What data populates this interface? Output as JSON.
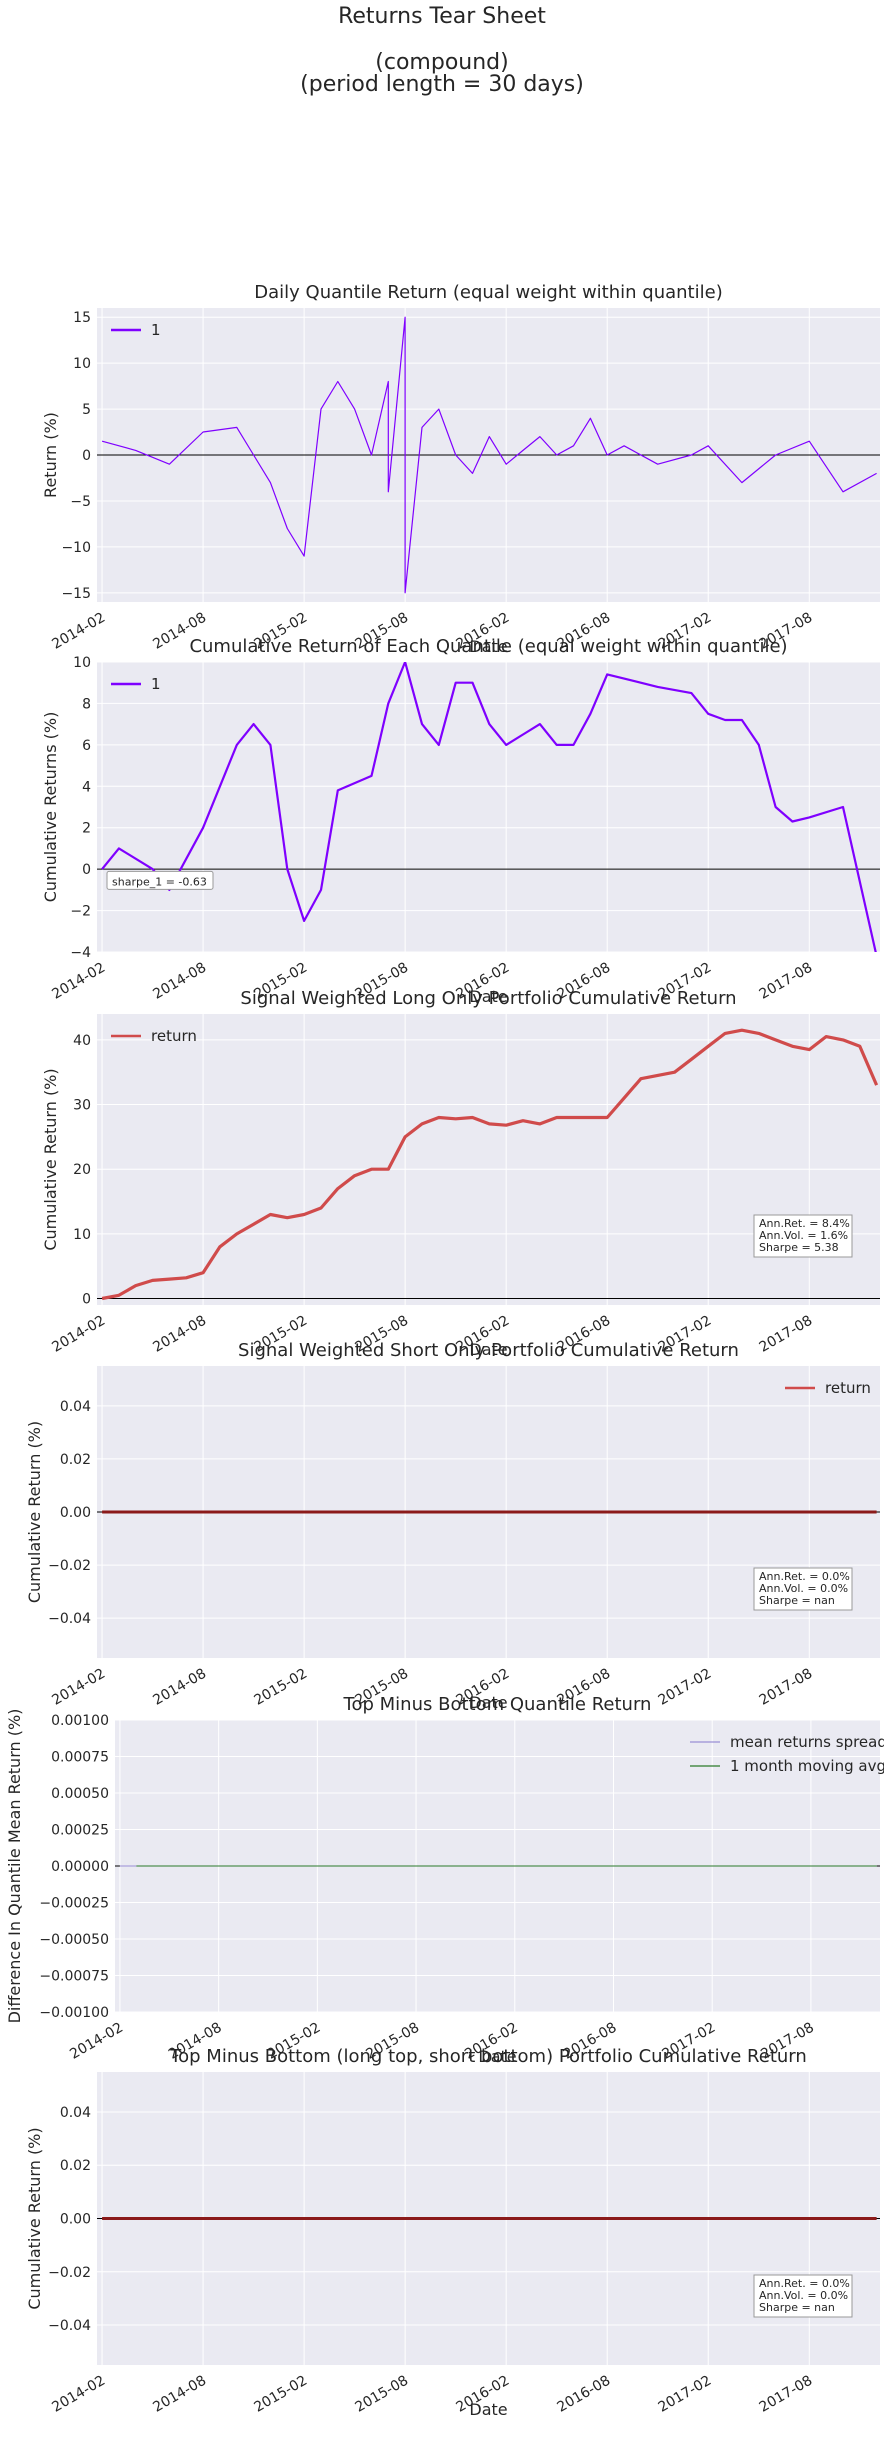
{
  "page": {
    "title": "Returns Tear Sheet",
    "subtitle_1": "(compound)",
    "subtitle_2": "(period length = 30 days)"
  },
  "colors": {
    "panel_bg": "#eaeaf2",
    "grid": "#ffffff",
    "quantile_1": "#7f00ff",
    "return_line": "#d04b4b",
    "zero_line": "#000000",
    "spread_line": "#9b8fd6",
    "moving_avg": "#2a7a2a"
  },
  "chart_data": [
    {
      "type": "line",
      "title": "Daily Quantile Return (equal weight within quantile)",
      "xlabel": "Date",
      "ylabel": "Return (%)",
      "xticks": [
        "2014-02",
        "2014-08",
        "2015-02",
        "2015-08",
        "2016-02",
        "2016-08",
        "2017-02",
        "2017-08"
      ],
      "yticks": [
        -15,
        -10,
        -5,
        0,
        5,
        10,
        15
      ],
      "ylim": [
        -16,
        16
      ],
      "grid": true,
      "legend_position": "top-left",
      "series": [
        {
          "name": "1",
          "x": [
            "2014-02",
            "2014-04",
            "2014-06",
            "2014-08",
            "2014-10",
            "2014-11",
            "2014-12",
            "2015-01",
            "2015-02",
            "2015-03",
            "2015-04",
            "2015-05",
            "2015-06",
            "2015-07",
            "2015-07",
            "2015-08",
            "2015-08",
            "2015-09",
            "2015-10",
            "2015-11",
            "2015-12",
            "2016-01",
            "2016-02",
            "2016-03",
            "2016-04",
            "2016-05",
            "2016-06",
            "2016-07",
            "2016-08",
            "2016-09",
            "2016-11",
            "2017-01",
            "2017-02",
            "2017-04",
            "2017-06",
            "2017-08",
            "2017-10",
            "2017-12"
          ],
          "values": [
            1.5,
            0.5,
            -1,
            2.5,
            3,
            0,
            -3,
            -8,
            -11,
            5,
            8,
            5,
            0,
            8,
            -4,
            15,
            -15,
            3,
            5,
            0,
            -2,
            2,
            -1,
            0.5,
            2,
            0,
            1,
            4,
            0,
            1,
            -1,
            0,
            1,
            -3,
            0,
            1.5,
            -4,
            -2
          ]
        }
      ]
    },
    {
      "type": "line",
      "title": "Cumulative Return of Each Quantile (equal weight within quantile)",
      "xlabel": "Date",
      "ylabel": "Cumulative Returns (%)",
      "xticks": [
        "2014-02",
        "2014-08",
        "2015-02",
        "2015-08",
        "2016-02",
        "2016-08",
        "2017-02",
        "2017-08"
      ],
      "yticks": [
        -4,
        -2,
        0,
        2,
        4,
        6,
        8,
        10
      ],
      "ylim": [
        -4,
        10
      ],
      "grid": true,
      "legend_position": "top-left",
      "annotation": "sharpe_1 = -0.63",
      "series": [
        {
          "name": "1",
          "x": [
            "2014-02",
            "2014-03",
            "2014-05",
            "2014-06",
            "2014-08",
            "2014-10",
            "2014-11",
            "2014-12",
            "2015-01",
            "2015-02",
            "2015-03",
            "2015-04",
            "2015-06",
            "2015-07",
            "2015-08",
            "2015-09",
            "2015-10",
            "2015-11",
            "2015-12",
            "2016-01",
            "2016-02",
            "2016-03",
            "2016-04",
            "2016-05",
            "2016-06",
            "2016-07",
            "2016-08",
            "2016-09",
            "2016-11",
            "2017-01",
            "2017-02",
            "2017-03",
            "2017-04",
            "2017-05",
            "2017-06",
            "2017-07",
            "2017-08",
            "2017-10",
            "2017-12"
          ],
          "values": [
            0,
            1,
            0,
            -1,
            2,
            6,
            7,
            6,
            0,
            -2.5,
            -1,
            3.8,
            4.5,
            8,
            10,
            7,
            6,
            9,
            9,
            7,
            6,
            6.5,
            7,
            6,
            6,
            7.5,
            9.4,
            9.2,
            8.8,
            8.5,
            7.5,
            7.2,
            7.2,
            6,
            3,
            2.3,
            2.5,
            3,
            -4.2
          ]
        }
      ]
    },
    {
      "type": "line",
      "title": "Signal Weighted Long Only Portfolio Cumulative Return",
      "xlabel": "Date",
      "ylabel": "Cumulative Return (%)",
      "xticks": [
        "2014-02",
        "2014-08",
        "2015-02",
        "2015-08",
        "2016-02",
        "2016-08",
        "2017-02",
        "2017-08"
      ],
      "yticks": [
        0,
        10,
        20,
        30,
        40
      ],
      "ylim": [
        -1,
        44
      ],
      "grid": true,
      "legend_position": "top-left",
      "stats": [
        "Ann.Ret. = 8.4%",
        "Ann.Vol. = 1.6%",
        "Sharpe = 5.38"
      ],
      "series": [
        {
          "name": "return",
          "x": [
            "2014-02",
            "2014-03",
            "2014-04",
            "2014-05",
            "2014-06",
            "2014-07",
            "2014-08",
            "2014-09",
            "2014-10",
            "2014-11",
            "2014-12",
            "2015-01",
            "2015-02",
            "2015-03",
            "2015-04",
            "2015-05",
            "2015-06",
            "2015-07",
            "2015-08",
            "2015-09",
            "2015-10",
            "2015-11",
            "2015-12",
            "2016-01",
            "2016-02",
            "2016-03",
            "2016-04",
            "2016-05",
            "2016-06",
            "2016-07",
            "2016-08",
            "2016-09",
            "2016-10",
            "2016-11",
            "2016-12",
            "2017-01",
            "2017-02",
            "2017-03",
            "2017-04",
            "2017-05",
            "2017-06",
            "2017-07",
            "2017-08",
            "2017-09",
            "2017-10",
            "2017-11",
            "2017-12"
          ],
          "values": [
            0,
            0.5,
            2,
            2.8,
            3,
            3.2,
            4,
            8,
            10,
            11.5,
            13,
            12.5,
            13,
            14,
            17,
            19,
            20,
            20,
            25,
            27,
            28,
            27.8,
            28,
            27,
            26.8,
            27.5,
            27,
            28,
            28,
            28,
            28,
            31,
            34,
            34.5,
            35,
            37,
            39,
            41,
            41.5,
            41,
            40,
            39,
            38.5,
            40.5,
            40,
            39,
            33
          ]
        }
      ]
    },
    {
      "type": "line",
      "title": "Signal Weighted Short Only Portfolio Cumulative Return",
      "xlabel": "Date",
      "ylabel": "Cumulative Return (%)",
      "xticks": [
        "2014-02",
        "2014-08",
        "2015-02",
        "2015-08",
        "2016-02",
        "2016-08",
        "2017-02",
        "2017-08"
      ],
      "yticks": [
        -0.04,
        -0.02,
        0.0,
        0.02,
        0.04
      ],
      "ytick_labels": [
        "−0.04",
        "−0.02",
        "0.00",
        "0.02",
        "0.04"
      ],
      "ylim": [
        -0.055,
        0.055
      ],
      "grid": true,
      "legend_position": "top-right",
      "stats": [
        "Ann.Ret. = 0.0%",
        "Ann.Vol. = 0.0%",
        "Sharpe = nan"
      ],
      "series": [
        {
          "name": "return",
          "x": [
            "2014-02",
            "2017-12"
          ],
          "values": [
            0,
            0
          ]
        }
      ]
    },
    {
      "type": "line",
      "title": "Top Minus Bottom Quantile Return",
      "xlabel": "Date",
      "ylabel": "Difference In Quantile Mean Return (%)",
      "xticks": [
        "2014-02",
        "2014-08",
        "2015-02",
        "2015-08",
        "2016-02",
        "2016-08",
        "2017-02",
        "2017-08"
      ],
      "yticks": [
        -0.001,
        -0.00075,
        -0.0005,
        -0.00025,
        0,
        0.00025,
        0.0005,
        0.00075,
        0.001
      ],
      "ytick_labels": [
        "−0.00100",
        "−0.00075",
        "−0.00050",
        "−0.00025",
        "0.00000",
        "0.00025",
        "0.00050",
        "0.00075",
        "0.00100"
      ],
      "ylim": [
        -0.001,
        0.001
      ],
      "grid": true,
      "legend_position": "top-right",
      "series": [
        {
          "name": "mean returns spread",
          "x": [
            "2014-02",
            "2017-12"
          ],
          "values": [
            0,
            0
          ]
        },
        {
          "name": "1 month moving avg",
          "x": [
            "2014-03",
            "2017-12"
          ],
          "values": [
            0,
            0
          ]
        }
      ]
    },
    {
      "type": "line",
      "title": "Top Minus Bottom (long top, short bottom) Portfolio Cumulative Return",
      "xlabel": "Date",
      "ylabel": "Cumulative Return (%)",
      "xticks": [
        "2014-02",
        "2014-08",
        "2015-02",
        "2015-08",
        "2016-02",
        "2016-08",
        "2017-02",
        "2017-08"
      ],
      "yticks": [
        -0.04,
        -0.02,
        0.0,
        0.02,
        0.04
      ],
      "ytick_labels": [
        "−0.04",
        "−0.02",
        "0.00",
        "0.02",
        "0.04"
      ],
      "ylim": [
        -0.055,
        0.055
      ],
      "grid": true,
      "stats": [
        "Ann.Ret. = 0.0%",
        "Ann.Vol. = 0.0%",
        "Sharpe = nan"
      ],
      "series": [
        {
          "x": [
            "2014-02",
            "2017-12"
          ],
          "values": [
            0,
            0
          ]
        }
      ]
    }
  ]
}
